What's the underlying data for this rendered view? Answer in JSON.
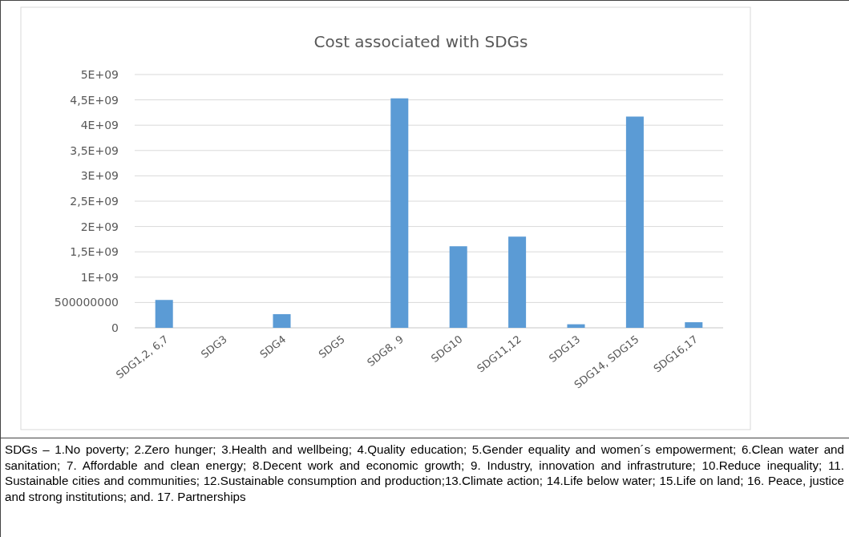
{
  "chart_data": {
    "type": "bar",
    "title": "Cost associated with SDGs",
    "categories": [
      "SDG1,2, 6,7",
      "SDG3",
      "SDG4",
      "SDG5",
      "SDG8, 9",
      "SDG10",
      "SDG11,12",
      "SDG13",
      "SDG14, SDG15",
      "SDG16,17"
    ],
    "values": [
      550000000,
      0,
      270000000,
      0,
      4530000000,
      1610000000,
      1800000000,
      70000000,
      4170000000,
      110000000
    ],
    "color": "#5b9bd5",
    "ylim": [
      0,
      5000000000
    ],
    "yticks": [
      0,
      500000000,
      {
        "value": 1000000000,
        "label": "1E+09"
      },
      {
        "value": 1500000000,
        "label": "1,5E+09"
      },
      {
        "value": 2000000000,
        "label": "2E+09"
      },
      {
        "value": 2500000000,
        "label": "2,5E+09"
      },
      {
        "value": 3000000000,
        "label": "3E+09"
      },
      {
        "value": 3500000000,
        "label": "3,5E+09"
      },
      {
        "value": 4000000000,
        "label": "4E+09"
      },
      {
        "value": 4500000000,
        "label": "4,5E+09"
      },
      {
        "value": 5000000000,
        "label": "5E+09"
      }
    ],
    "grid": "y",
    "annotations": [
      "SDGs – 1.No poverty; 2.Zero hunger; 3.Health and wellbeing; 4.Quality education; 5.Gender equality and women´s empowerment; 6.Clean water and sanitation; 7. Affordable and clean energy; 8.Decent work and economic growth; 9. Industry, innovation and infrastruture; 10.Reduce inequality; 11. Sustainable cities and communities; 12.Sustainable consumption and production;13.Climate action; 14.Life below water; 15.Life on land; 16. Peace, justice and strong institutions; and. 17. Partnerships"
    ]
  }
}
